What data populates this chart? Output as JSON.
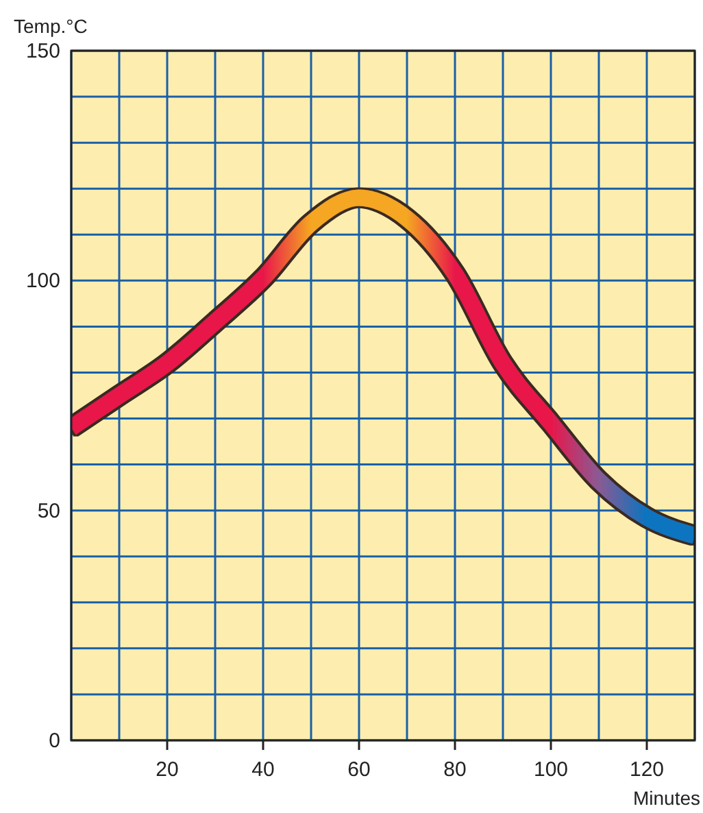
{
  "chart_data": {
    "type": "line",
    "ylabel": "Temp.°C",
    "xlabel": "Minutes",
    "x": [
      0,
      10,
      20,
      30,
      40,
      50,
      60,
      70,
      80,
      90,
      100,
      110,
      120,
      130
    ],
    "series": [
      {
        "colors": [
          "#e8174a",
          "#e8174a",
          "#e8174a",
          "#e8174a",
          "#e8174a",
          "#f5a623",
          "#f5a623",
          "#f5a623",
          "#e8174a",
          "#e8174a",
          "#e8174a",
          "#8a5a94",
          "#0a74bf",
          "#0a74bf"
        ],
        "values": [
          68,
          75,
          82,
          91,
          100.5,
          112.5,
          118,
          113.5,
          101.5,
          82,
          69,
          56.5,
          48.5,
          44.5
        ]
      }
    ],
    "xlim": [
      0,
      130
    ],
    "xticks": [
      {
        "value": 0,
        "label": null
      },
      {
        "value": 10,
        "label": null
      },
      20,
      {
        "value": 30,
        "label": null
      },
      40,
      {
        "value": 50,
        "label": null
      },
      60,
      {
        "value": 70,
        "label": null
      },
      80,
      {
        "value": 90,
        "label": null
      },
      100,
      {
        "value": 110,
        "label": null
      },
      120,
      {
        "value": 130,
        "label": null
      }
    ],
    "ylim": [
      0,
      150
    ],
    "yticks": [
      0,
      {
        "value": 10,
        "label": null
      },
      {
        "value": 20,
        "label": null
      },
      {
        "value": 30,
        "label": null
      },
      {
        "value": 40,
        "label": null
      },
      50,
      {
        "value": 60,
        "label": null
      },
      {
        "value": 70,
        "label": null
      },
      {
        "value": 80,
        "label": null
      },
      {
        "value": 90,
        "label": null
      },
      100,
      {
        "value": 110,
        "label": null
      },
      {
        "value": 120,
        "label": null
      },
      {
        "value": 130,
        "label": null
      },
      {
        "value": 140,
        "label": null
      },
      150
    ],
    "grid": true,
    "marker": "none",
    "line_style": "solid"
  }
}
